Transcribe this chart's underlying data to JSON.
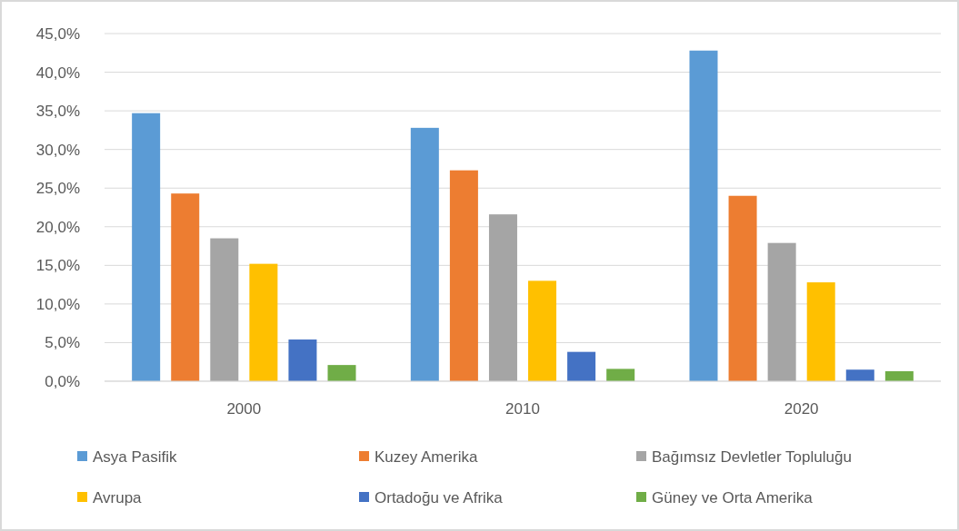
{
  "chart_data": {
    "type": "bar",
    "categories": [
      "2000",
      "2010",
      "2020"
    ],
    "series": [
      {
        "name": "Asya Pasifik",
        "color": "#5b9bd5",
        "values": [
          34.7,
          32.8,
          42.8
        ]
      },
      {
        "name": "Kuzey Amerika",
        "color": "#ed7d31",
        "values": [
          24.3,
          27.3,
          24.0
        ]
      },
      {
        "name": "Bağımsız Devletler Topluluğu",
        "color": "#a5a5a5",
        "values": [
          18.5,
          21.6,
          17.9
        ]
      },
      {
        "name": "Avrupa",
        "color": "#ffc000",
        "values": [
          15.2,
          13.0,
          12.8
        ]
      },
      {
        "name": "Ortadoğu ve Afrika",
        "color": "#4472c4",
        "values": [
          5.4,
          3.8,
          1.5
        ]
      },
      {
        "name": "Güney ve Orta Amerika",
        "color": "#70ad47",
        "values": [
          2.1,
          1.6,
          1.3
        ]
      }
    ],
    "ylim": [
      0,
      45
    ],
    "yticks": [
      {
        "value": 0,
        "label": "0,0%"
      },
      {
        "value": 5,
        "label": "5,0%"
      },
      {
        "value": 10,
        "label": "10,0%"
      },
      {
        "value": 15,
        "label": "15,0%"
      },
      {
        "value": 20,
        "label": "20,0%"
      },
      {
        "value": 25,
        "label": "25,0%"
      },
      {
        "value": 30,
        "label": "30,0%"
      },
      {
        "value": 35,
        "label": "35,0%"
      },
      {
        "value": 40,
        "label": "40,0%"
      },
      {
        "value": 45,
        "label": "45,0%"
      }
    ],
    "grid": "y",
    "legend": "bottom"
  }
}
